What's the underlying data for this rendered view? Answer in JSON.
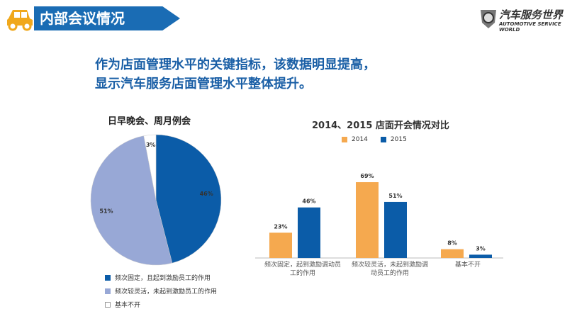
{
  "header": {
    "title": "内部会议情况",
    "logo_text": "汽车服务世界",
    "logo_subtext": "AUTOMOTIVE SERVICE WORLD"
  },
  "headline": [
    "作为店面管理水平的关键指标，该数据明显提高，",
    "显示汽车服务店面管理水平整体提升。"
  ],
  "chart_data": [
    {
      "type": "pie",
      "title": "日早晚会、周月例会",
      "slices": [
        {
          "name": "频次固定，且起到激励员工的作用",
          "value": 46,
          "label": "46%",
          "color": "#0b5ca8"
        },
        {
          "name": "频次较灵活，未起到激励员工的作用",
          "value": 51,
          "label": "51%",
          "color": "#98a8d6"
        },
        {
          "name": "基本不开",
          "value": 3,
          "label": "3%",
          "color": "#ffffff"
        }
      ],
      "legend": "bottom-left"
    },
    {
      "type": "bar",
      "title": "2014、2015 店面开会情况对比",
      "categories": [
        "频次固定，起到激励调动员工的作用",
        "频次较灵活，未起到激励调动员工的作用",
        "基本不开"
      ],
      "series": [
        {
          "name": "2014",
          "values": [
            23,
            69,
            8
          ],
          "labels": [
            "23%",
            "69%",
            "8%"
          ],
          "color": "#f5a94f"
        },
        {
          "name": "2015",
          "values": [
            46,
            51,
            3
          ],
          "labels": [
            "46%",
            "51%",
            "3%"
          ],
          "color": "#0b5ca8"
        }
      ],
      "legend": "top",
      "ylim": [
        0,
        75
      ],
      "grid": false
    }
  ]
}
